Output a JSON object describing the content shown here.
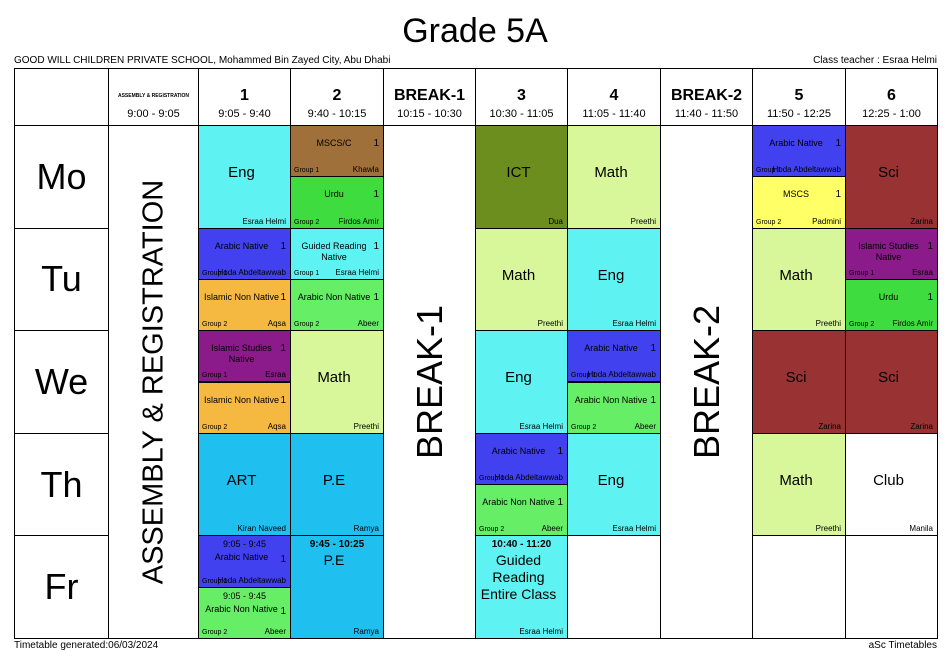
{
  "header": {
    "title": "Grade 5A",
    "school": "GOOD WILL CHILDREN PRIVATE SCHOOL, Mohammed Bin Zayed City, Abu Dhabi",
    "class_teacher": "Class teacher : Esraa Helmi"
  },
  "footer": {
    "generated": "Timetable generated:06/03/2024",
    "software": "aSc Timetables"
  },
  "days": [
    "Mo",
    "Tu",
    "We",
    "Th",
    "Fr"
  ],
  "columns": [
    {
      "label": "ASSEMBLY & REGISTRATION",
      "time": "9:00 - 9:05",
      "full_column": true
    },
    {
      "label": "1",
      "time": "9:05 - 9:40"
    },
    {
      "label": "2",
      "time": "9:40 - 10:15"
    },
    {
      "label": "BREAK-1",
      "time": "10:15 - 10:30",
      "full_column": true
    },
    {
      "label": "3",
      "time": "10:30 - 11:05"
    },
    {
      "label": "4",
      "time": "11:05 - 11:40"
    },
    {
      "label": "BREAK-2",
      "time": "11:40 - 11:50",
      "full_column": true
    },
    {
      "label": "5",
      "time": "11:50 - 12:25"
    },
    {
      "label": "6",
      "time": "12:25 - 1:00"
    }
  ],
  "lessons": [
    {
      "day": 0,
      "column": 1,
      "part": "full",
      "color": "#5ff2f2",
      "subject": "Eng",
      "teacher": "Esraa Helmi"
    },
    {
      "day": 0,
      "column": 2,
      "part": "top",
      "color": "#a0703a",
      "subject": "MSCS/C",
      "number": 1,
      "group": "Group 1",
      "teacher": "Khawla"
    },
    {
      "day": 0,
      "column": 2,
      "part": "bottom",
      "color": "#3fdc3f",
      "subject": "Urdu",
      "number": 1,
      "group": "Group 2",
      "teacher": "Firdos Amir"
    },
    {
      "day": 0,
      "column": 4,
      "part": "full",
      "color": "#6b8e1f",
      "subject": "ICT",
      "teacher": "Dua"
    },
    {
      "day": 0,
      "column": 5,
      "part": "full",
      "color": "#d8f79a",
      "subject": "Math",
      "teacher": "Preethi"
    },
    {
      "day": 0,
      "column": 7,
      "part": "top",
      "color": "#4141f0",
      "subject": "Arabic Native",
      "number": 1,
      "group": "Group 1",
      "teacher": "Hoda Abdeltawwab"
    },
    {
      "day": 0,
      "column": 7,
      "part": "bottom",
      "color": "#ffff66",
      "subject": "MSCS",
      "number": 1,
      "group": "Group 2",
      "teacher": "Padmini"
    },
    {
      "day": 0,
      "column": 8,
      "part": "full",
      "color": "#993333",
      "subject": "Sci",
      "teacher": "Zarina"
    },
    {
      "day": 1,
      "column": 1,
      "part": "top",
      "color": "#4141f0",
      "subject": "Arabic Native",
      "number": 1,
      "group": "Group 1",
      "teacher": "Hoda Abdeltawwab"
    },
    {
      "day": 1,
      "column": 1,
      "part": "bottom",
      "color": "#f5b942",
      "subject": "Islamic Non Native",
      "number": 1,
      "group": "Group 2",
      "teacher": "Aqsa"
    },
    {
      "day": 1,
      "column": 2,
      "part": "top",
      "color": "#5ff2f2",
      "subject": "Guided Reading Native",
      "number": 1,
      "group": "Group 1",
      "teacher": "Esraa Helmi"
    },
    {
      "day": 1,
      "column": 2,
      "part": "bottom",
      "color": "#66ee66",
      "subject": "Arabic Non Native",
      "number": 1,
      "group": "Group 2",
      "teacher": "Abeer"
    },
    {
      "day": 1,
      "column": 4,
      "part": "full",
      "color": "#d8f79a",
      "subject": "Math",
      "teacher": "Preethi"
    },
    {
      "day": 1,
      "column": 5,
      "part": "full",
      "color": "#5ff2f2",
      "subject": "Eng",
      "teacher": "Esraa Helmi"
    },
    {
      "day": 1,
      "column": 7,
      "part": "full",
      "color": "#d8f79a",
      "subject": "Math",
      "teacher": "Preethi"
    },
    {
      "day": 1,
      "column": 8,
      "part": "top",
      "color": "#8b1a8b",
      "subject": "Islamic Studies Native",
      "number": 1,
      "group": "Group 1",
      "teacher": "Esraa"
    },
    {
      "day": 1,
      "column": 8,
      "part": "bottom",
      "color": "#3fdc3f",
      "subject": "Urdu",
      "number": 1,
      "group": "Group 2",
      "teacher": "Firdos Amir"
    },
    {
      "day": 2,
      "column": 1,
      "part": "top",
      "color": "#8b1a8b",
      "subject": "Islamic Studies Native",
      "number": 1,
      "group": "Group 1",
      "teacher": "Esraa"
    },
    {
      "day": 2,
      "column": 1,
      "part": "bottom",
      "color": "#f5b942",
      "subject": "Islamic Non Native",
      "number": 1,
      "group": "Group 2",
      "teacher": "Aqsa"
    },
    {
      "day": 2,
      "column": 2,
      "part": "full",
      "color": "#d8f79a",
      "subject": "Math",
      "teacher": "Preethi"
    },
    {
      "day": 2,
      "column": 4,
      "part": "full",
      "color": "#5ff2f2",
      "subject": "Eng",
      "teacher": "Esraa Helmi"
    },
    {
      "day": 2,
      "column": 5,
      "part": "top",
      "color": "#4141f0",
      "subject": "Arabic Native",
      "number": 1,
      "group": "Group 1",
      "teacher": "Hoda Abdeltawwab"
    },
    {
      "day": 2,
      "column": 5,
      "part": "bottom",
      "color": "#66ee66",
      "subject": "Arabic Non Native",
      "number": 1,
      "group": "Group 2",
      "teacher": "Abeer"
    },
    {
      "day": 2,
      "column": 7,
      "part": "full",
      "color": "#993333",
      "subject": "Sci",
      "teacher": "Zarina"
    },
    {
      "day": 2,
      "column": 8,
      "part": "full",
      "color": "#993333",
      "subject": "Sci",
      "teacher": "Zarina"
    },
    {
      "day": 3,
      "column": 1,
      "part": "full",
      "color": "#1fbff0",
      "subject": "ART",
      "teacher": "Kiran Naveed"
    },
    {
      "day": 3,
      "column": 2,
      "part": "full",
      "color": "#1fbff0",
      "subject": "P.E",
      "teacher": "Ramya"
    },
    {
      "day": 3,
      "column": 4,
      "part": "top",
      "color": "#4141f0",
      "subject": "Arabic Native",
      "number": 1,
      "group": "Group 1",
      "teacher": "Hoda Abdeltawwab"
    },
    {
      "day": 3,
      "column": 4,
      "part": "bottom",
      "color": "#66ee66",
      "subject": "Arabic Non Native",
      "number": 1,
      "group": "Group 2",
      "teacher": "Abeer"
    },
    {
      "day": 3,
      "column": 5,
      "part": "full",
      "color": "#5ff2f2",
      "subject": "Eng",
      "teacher": "Esraa Helmi"
    },
    {
      "day": 3,
      "column": 7,
      "part": "full",
      "color": "#d8f79a",
      "subject": "Math",
      "teacher": "Preethi"
    },
    {
      "day": 3,
      "column": 8,
      "part": "full",
      "color": "#ffffff",
      "subject": "Club",
      "teacher": "Manila"
    },
    {
      "day": 4,
      "column": 1,
      "part": "top",
      "color": "#4141f0",
      "time": "9:05 - 9:45",
      "subject": "Arabic Native",
      "number": 1,
      "group": "Group 1",
      "teacher": "Hoda Abdeltawwab"
    },
    {
      "day": 4,
      "column": 1,
      "part": "bottom",
      "color": "#66ee66",
      "time": "9:05 - 9:45",
      "subject": "Arabic Non Native",
      "number": 1,
      "group": "Group 2",
      "teacher": "Abeer"
    },
    {
      "day": 4,
      "column": 2,
      "part": "full",
      "color": "#1fbff0",
      "time": "9:45 - 10:25",
      "subject": "P.E",
      "teacher": "Ramya"
    },
    {
      "day": 4,
      "column": 4,
      "part": "full",
      "color": "#5ff2f2",
      "time": "10:40 - 11:20",
      "subject": "Guided Reading Entire Class",
      "teacher": "Esraa Helmi"
    }
  ]
}
